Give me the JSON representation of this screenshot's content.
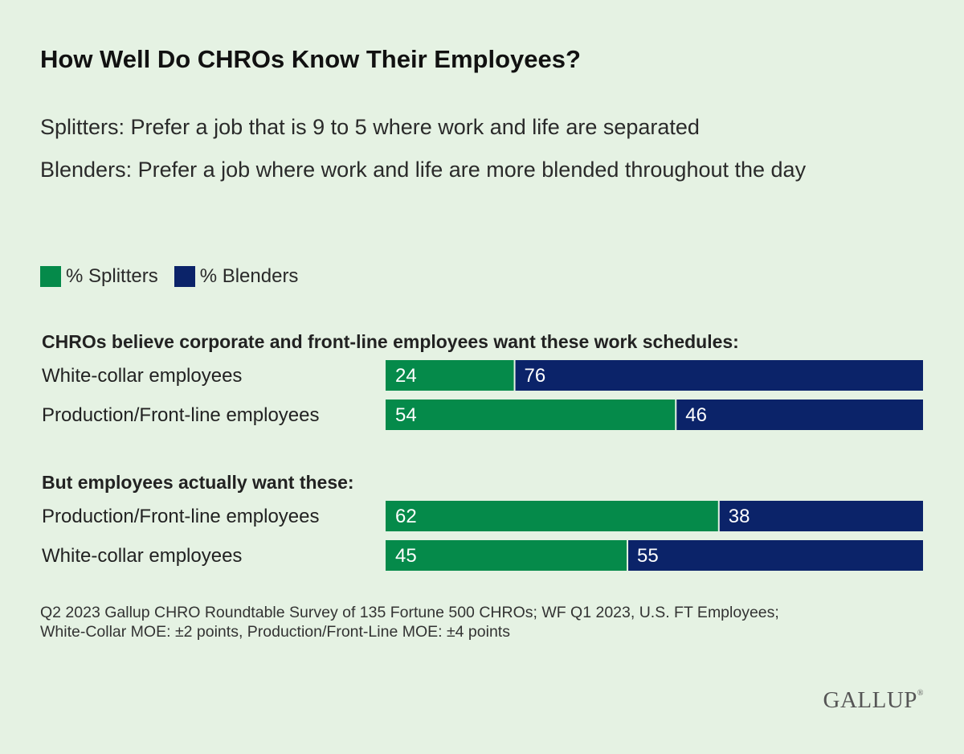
{
  "header": {
    "title": "How Well Do CHROs Know Their Employees?",
    "subtitle_line1": "Splitters: Prefer a job that is 9 to 5 where work and life are separated",
    "subtitle_line2": "Blenders: Prefer a job where work and life are more blended throughout the day"
  },
  "footnote": {
    "line1": "Q2 2023 Gallup CHRO Roundtable Survey of 135 Fortune 500 CHROs; WF Q1 2023, U.S. FT Employees;",
    "line2": "White-Collar MOE: ±2 points, Production/Front-Line MOE: ±4 points"
  },
  "brand": {
    "logo_text": "GALLUP",
    "trademark": "®"
  },
  "colors": {
    "splitters": "#058a4a",
    "blenders": "#0b2369",
    "background": "#e5f2e3"
  },
  "chart_data": {
    "type": "bar",
    "orientation": "horizontal",
    "stacked": true,
    "legend_position": "top-left",
    "xlim": [
      0,
      100
    ],
    "series": [
      {
        "name": "% Splitters",
        "color": "#058a4a"
      },
      {
        "name": "% Blenders",
        "color": "#0b2369"
      }
    ],
    "groups": [
      {
        "label": "CHROs believe corporate and front-line employees want these work schedules:",
        "rows": [
          {
            "category": "White-collar employees",
            "values": [
              24,
              76
            ]
          },
          {
            "category": "Production/Front-line employees",
            "values": [
              54,
              46
            ]
          }
        ]
      },
      {
        "label": "But employees actually want these:",
        "rows": [
          {
            "category": "Production/Front-line employees",
            "values": [
              62,
              38
            ]
          },
          {
            "category": "White-collar employees",
            "values": [
              45,
              55
            ]
          }
        ]
      }
    ]
  }
}
